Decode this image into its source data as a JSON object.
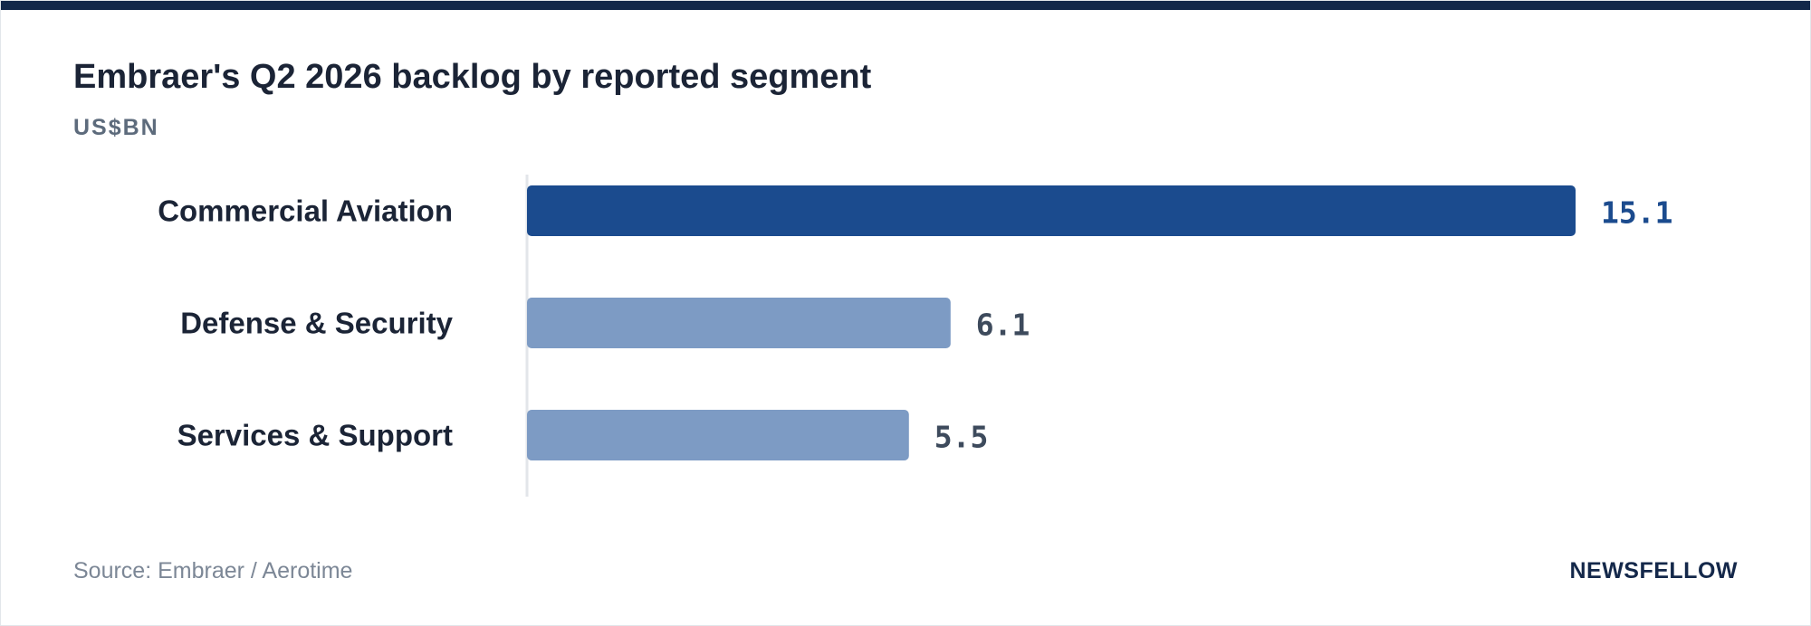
{
  "colors": {
    "top_bar": "#13284a",
    "highlight_bar": "#1b4b8e",
    "muted_bar": "#7d9bc4",
    "highlight_value": "#1b4b8e",
    "muted_value": "#3d4a5c",
    "axis": "#e3e6ea"
  },
  "chart_data": {
    "type": "bar",
    "orientation": "horizontal",
    "title": "Embraer's Q2 2026 backlog by reported segment",
    "subtitle": "US$BN",
    "categories": [
      "Commercial Aviation",
      "Defense & Security",
      "Services & Support"
    ],
    "values": [
      15.1,
      6.1,
      5.5
    ],
    "value_labels": [
      "15.1",
      "6.1",
      "5.5"
    ],
    "highlight_index": 0,
    "xlim": [
      0,
      15.1
    ],
    "grid": false,
    "legend": "none"
  },
  "footer": {
    "source": "Source: Embraer / Aerotime",
    "brand": "NEWSFELLOW"
  }
}
